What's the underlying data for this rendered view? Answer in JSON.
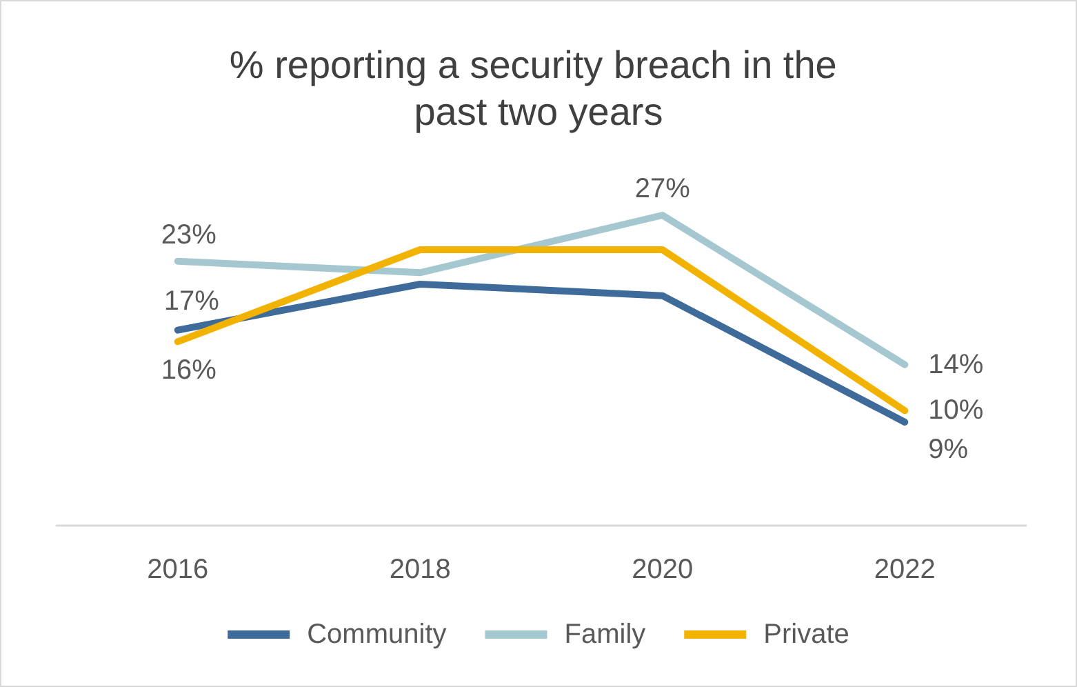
{
  "chart_data": {
    "type": "line",
    "title": "% reporting a security breach in the past two years",
    "categories": [
      "2016",
      "2018",
      "2020",
      "2022"
    ],
    "series": [
      {
        "name": "Community",
        "color": "#3e6b9a",
        "values": [
          17,
          21,
          20,
          9
        ],
        "value_labels": [
          "17%",
          null,
          null,
          "9%"
        ]
      },
      {
        "name": "Family",
        "color": "#a5c8d0",
        "values": [
          23,
          22,
          27,
          14
        ],
        "value_labels": [
          "23%",
          null,
          "27%",
          "14%"
        ]
      },
      {
        "name": "Private",
        "color": "#f2b300",
        "values": [
          16,
          24,
          24,
          10
        ],
        "value_labels": [
          "16%",
          null,
          null,
          "10%"
        ]
      }
    ],
    "tick_labels": "x",
    "grid": false,
    "legend": "bottom",
    "marker": "none",
    "line_style": "solid"
  }
}
